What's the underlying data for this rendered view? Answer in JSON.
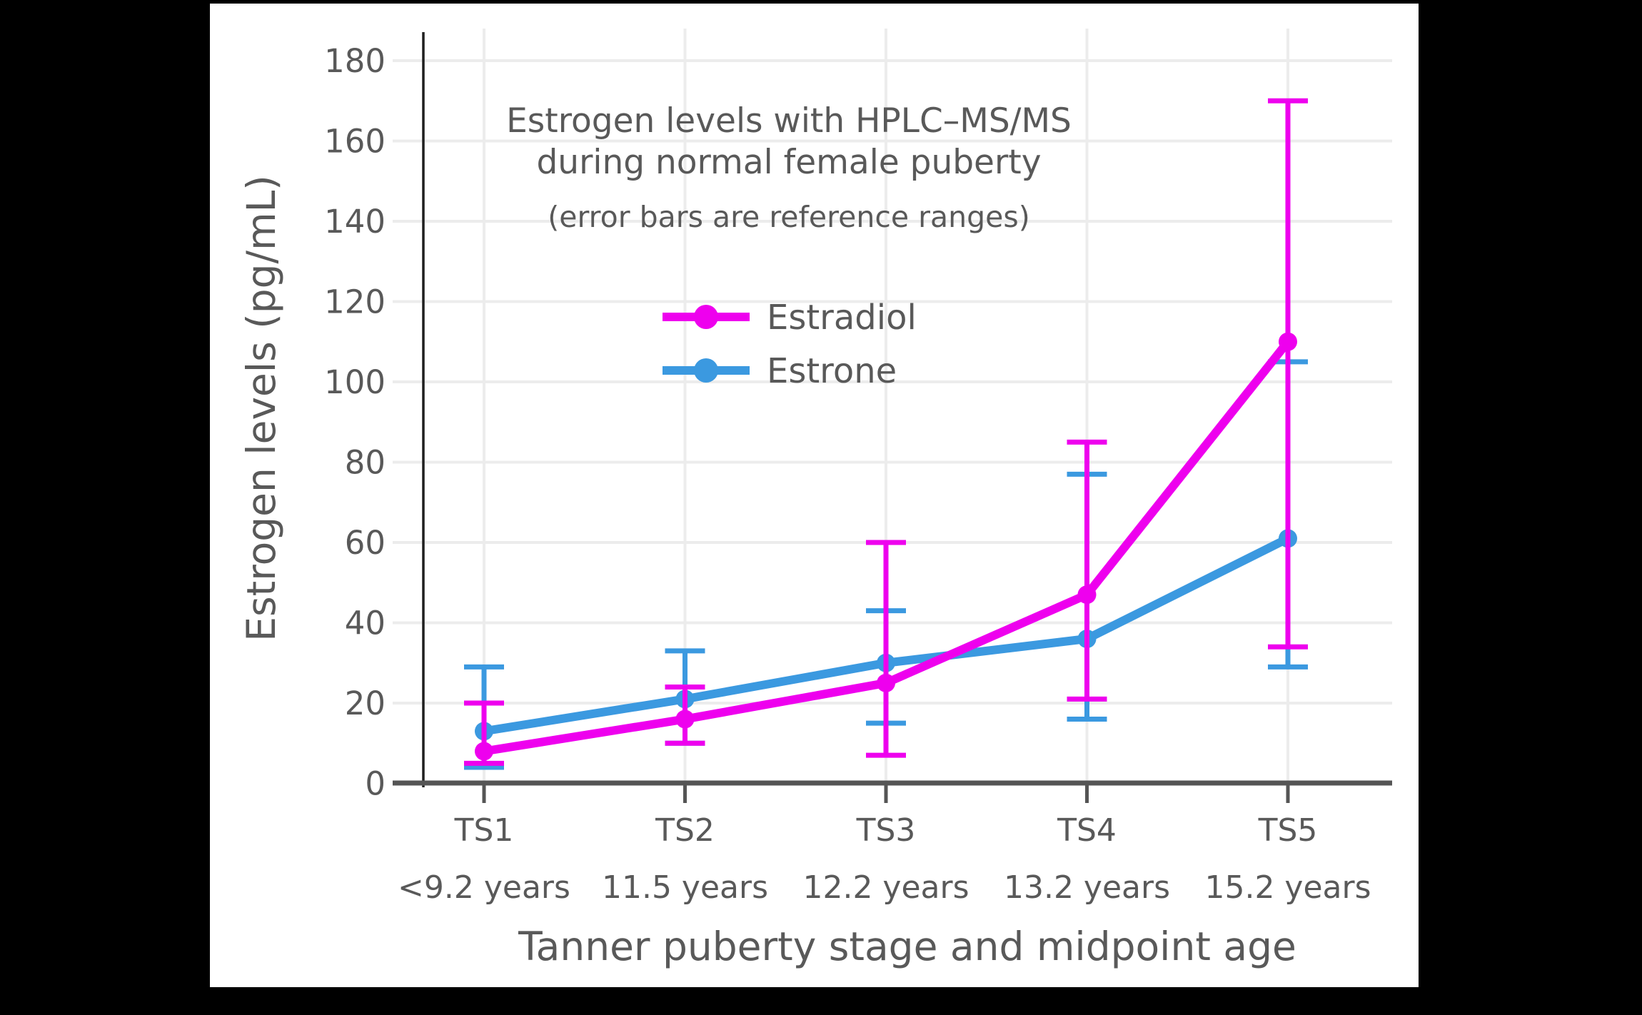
{
  "page": {
    "background_color": "#000000",
    "panel_color": "#ffffff",
    "text_color": "#595959"
  },
  "chart_data": {
    "type": "line",
    "title_line1": "Estrogen levels with HPLC–MS/MS",
    "title_line2": "during normal female puberty",
    "subtitle": "(error bars are reference ranges)",
    "xlabel": "Tanner puberty stage and midpoint age",
    "ylabel": "Estrogen levels (pg/mL)",
    "categories": [
      "TS1",
      "TS2",
      "TS3",
      "TS4",
      "TS5"
    ],
    "category_ages": [
      "<9.2 years",
      "11.5 years",
      "12.2 years",
      "13.2 years",
      "15.2 years"
    ],
    "yticks": [
      0,
      20,
      40,
      60,
      80,
      100,
      120,
      140,
      160,
      180
    ],
    "ylim": [
      0,
      187
    ],
    "grid": true,
    "legend_position": "upper-center",
    "error_bars": "reference ranges",
    "series": [
      {
        "name": "Estrone",
        "color": "#3b99e0",
        "values": [
          13,
          21,
          30,
          36,
          61
        ],
        "error_low": [
          4,
          10,
          15,
          16,
          29
        ],
        "error_high": [
          29,
          33,
          43,
          77,
          105
        ]
      },
      {
        "name": "Estradiol",
        "color": "#ee00ee",
        "values": [
          8,
          16,
          25,
          47,
          110
        ],
        "error_low": [
          5,
          10,
          7,
          21,
          34
        ],
        "error_high": [
          20,
          24,
          60,
          85,
          170
        ]
      }
    ],
    "legend_order_top_to_bottom": [
      "Estradiol",
      "Estrone"
    ]
  }
}
